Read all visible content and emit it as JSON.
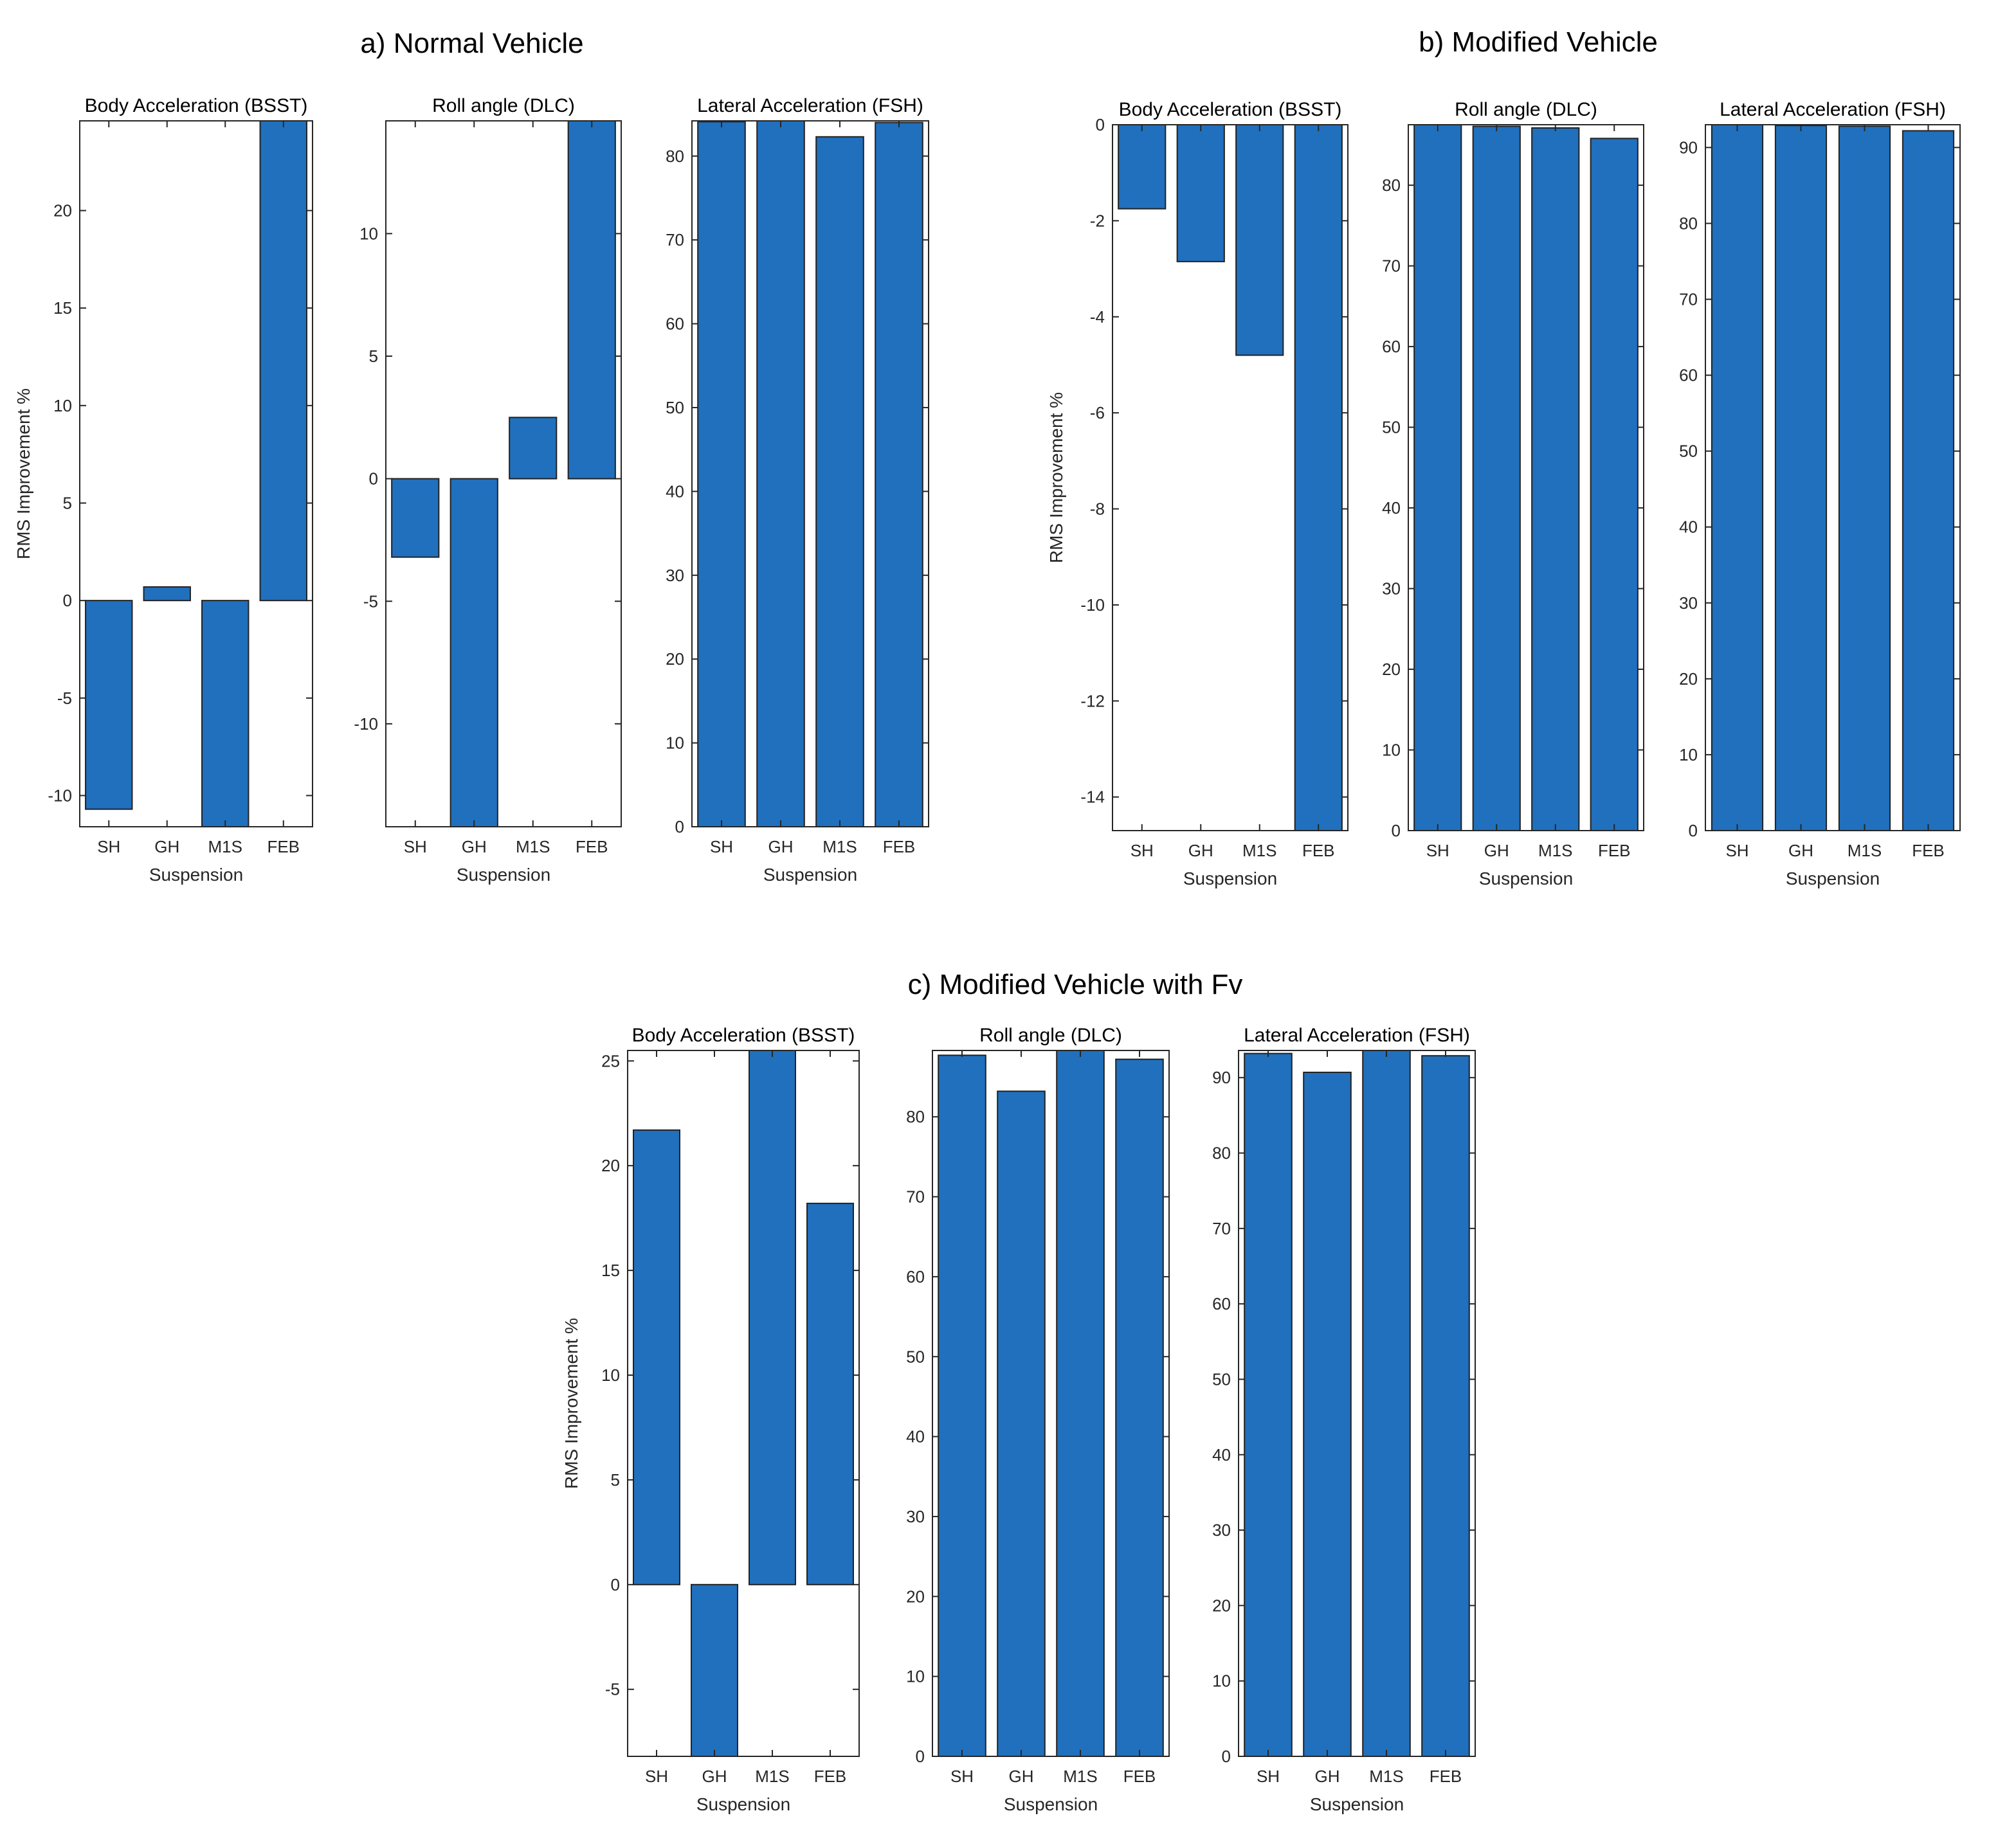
{
  "colors": {
    "bar": "#2070bd",
    "edge": "#222222",
    "axis": "#262626"
  },
  "chart_data": [
    {
      "group": "a",
      "group_title": "a) Normal Vehicle",
      "type": "bar",
      "title": "Body Acceleration (BSST)",
      "xlabel": "Suspension",
      "ylabel": "RMS Improvement %",
      "categories": [
        "SH",
        "GH",
        "M1S",
        "FEB"
      ],
      "values": [
        -10.7,
        0.7,
        -11.6,
        24.6
      ],
      "ylim": [
        -11.6,
        24.6
      ],
      "yticks": [
        -10,
        -5,
        0,
        5,
        10,
        15,
        20
      ]
    },
    {
      "group": "a",
      "type": "bar",
      "title": "Roll angle (DLC)",
      "xlabel": "Suspension",
      "ylabel": "",
      "categories": [
        "SH",
        "GH",
        "M1S",
        "FEB"
      ],
      "values": [
        -3.2,
        -14.2,
        2.5,
        14.6
      ],
      "ylim": [
        -14.2,
        14.6
      ],
      "yticks": [
        -10,
        -5,
        0,
        5,
        10
      ]
    },
    {
      "group": "a",
      "type": "bar",
      "title": "Lateral Acceleration (FSH)",
      "xlabel": "Suspension",
      "ylabel": "",
      "categories": [
        "SH",
        "GH",
        "M1S",
        "FEB"
      ],
      "values": [
        84.1,
        84.2,
        82.3,
        84.0
      ],
      "ylim": [
        0,
        84.2
      ],
      "yticks": [
        0,
        10,
        20,
        30,
        40,
        50,
        60,
        70,
        80
      ]
    },
    {
      "group": "b",
      "group_title": "b) Modified Vehicle",
      "type": "bar",
      "title": "Body Acceleration (BSST)",
      "xlabel": "Suspension",
      "ylabel": "RMS Improvement %",
      "categories": [
        "SH",
        "GH",
        "M1S",
        "FEB"
      ],
      "values": [
        -1.75,
        -2.85,
        -4.8,
        -14.7
      ],
      "ylim": [
        -14.7,
        0
      ],
      "yticks": [
        -14,
        -12,
        -10,
        -8,
        -6,
        -4,
        -2,
        0
      ]
    },
    {
      "group": "b",
      "type": "bar",
      "title": "Roll angle (DLC)",
      "xlabel": "Suspension",
      "ylabel": "",
      "categories": [
        "SH",
        "GH",
        "M1S",
        "FEB"
      ],
      "values": [
        87.5,
        87.3,
        87.1,
        85.8
      ],
      "ylim": [
        0,
        87.5
      ],
      "yticks": [
        0,
        10,
        20,
        30,
        40,
        50,
        60,
        70,
        80
      ]
    },
    {
      "group": "b",
      "type": "bar",
      "title": "Lateral Acceleration (FSH)",
      "xlabel": "Suspension",
      "ylabel": "",
      "categories": [
        "SH",
        "GH",
        "M1S",
        "FEB"
      ],
      "values": [
        93.0,
        92.9,
        92.8,
        92.2
      ],
      "ylim": [
        0,
        93.0
      ],
      "yticks": [
        0,
        10,
        20,
        30,
        40,
        50,
        60,
        70,
        80,
        90
      ]
    },
    {
      "group": "c",
      "group_title": "c) Modified Vehicle with Fv",
      "type": "bar",
      "title": "Body Acceleration (BSST)",
      "xlabel": "Suspension",
      "ylabel": "RMS Improvement %",
      "categories": [
        "SH",
        "GH",
        "M1S",
        "FEB"
      ],
      "values": [
        21.7,
        -8.2,
        25.5,
        18.2
      ],
      "ylim": [
        -8.2,
        25.5
      ],
      "yticks": [
        -5,
        0,
        5,
        10,
        15,
        20,
        25
      ]
    },
    {
      "group": "c",
      "type": "bar",
      "title": "Roll angle (DLC)",
      "xlabel": "Suspension",
      "ylabel": "",
      "categories": [
        "SH",
        "GH",
        "M1S",
        "FEB"
      ],
      "values": [
        87.7,
        83.2,
        88.3,
        87.2
      ],
      "ylim": [
        0,
        88.3
      ],
      "yticks": [
        0,
        10,
        20,
        30,
        40,
        50,
        60,
        70,
        80
      ]
    },
    {
      "group": "c",
      "type": "bar",
      "title": "Lateral Acceleration (FSH)",
      "xlabel": "Suspension",
      "ylabel": "",
      "categories": [
        "SH",
        "GH",
        "M1S",
        "FEB"
      ],
      "values": [
        93.2,
        90.7,
        93.6,
        92.9
      ],
      "ylim": [
        0,
        93.6
      ],
      "yticks": [
        0,
        10,
        20,
        30,
        40,
        50,
        60,
        70,
        80,
        90
      ]
    }
  ]
}
